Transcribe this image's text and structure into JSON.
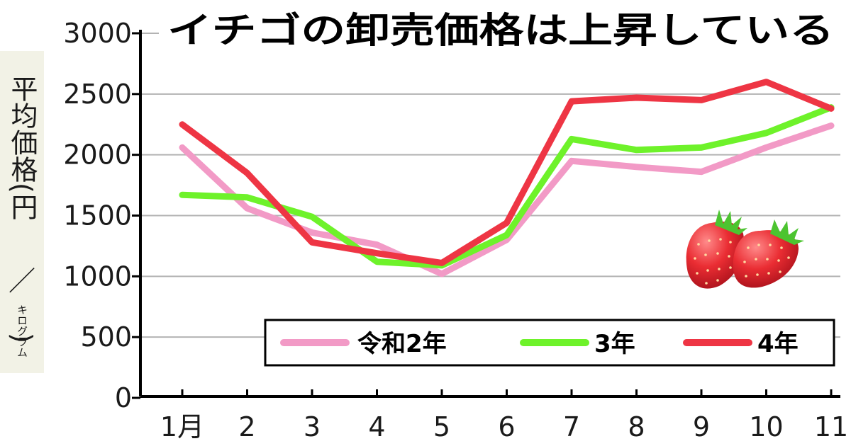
{
  "chart_data": {
    "type": "line",
    "title": "イチゴの卸売価格は上昇している",
    "ylabel": {
      "main": "平均価格(円",
      "slash": "／",
      "unit": "キログラム",
      "close": ")"
    },
    "ylim": [
      0,
      3000
    ],
    "yticks": [
      "0",
      "500",
      "1000",
      "1500",
      "2000",
      "2500",
      "3000"
    ],
    "categories": [
      "1月",
      "2",
      "3",
      "4",
      "5",
      "6",
      "7",
      "8",
      "9",
      "10",
      "11"
    ],
    "series": [
      {
        "name": "令和2年",
        "color": "#f29ac6",
        "values": [
          2060,
          1560,
          1360,
          1260,
          1020,
          1300,
          1950,
          1900,
          1860,
          2060,
          2240
        ]
      },
      {
        "name": "3年",
        "color": "#6ef22a",
        "values": [
          1670,
          1650,
          1490,
          1120,
          1090,
          1340,
          2130,
          2040,
          2060,
          2180,
          2390
        ]
      },
      {
        "name": "4年",
        "color": "#ee3544",
        "values": [
          2250,
          1850,
          1280,
          1190,
          1110,
          1440,
          2440,
          2470,
          2450,
          2600,
          2380
        ]
      }
    ],
    "grid": true,
    "legend_position": "bottom-right",
    "decoration": "strawberry-icons"
  }
}
